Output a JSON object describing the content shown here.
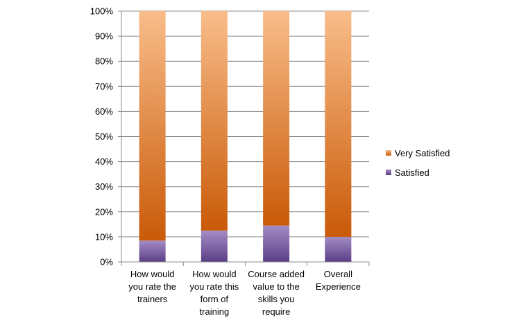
{
  "chart_data": {
    "type": "bar",
    "stacked": true,
    "percent_axis": true,
    "categories": [
      [
        "How would",
        "you rate the",
        "trainers"
      ],
      [
        "How would",
        "you rate this",
        "form of",
        "training"
      ],
      [
        "Course added",
        "value to the",
        "skills you",
        "require"
      ],
      [
        "Overall",
        "Experience"
      ]
    ],
    "series": [
      {
        "name": "Satisfied",
        "values": [
          8.5,
          12.5,
          14.5,
          10
        ],
        "color_top": "#a48cc4",
        "color_bottom": "#5b3f87"
      },
      {
        "name": "Very Satisfied",
        "values": [
          91.5,
          87.5,
          85.5,
          90
        ],
        "color_top": "#f9bd8a",
        "color_bottom": "#c95a08"
      }
    ],
    "yticks": [
      "0%",
      "10%",
      "20%",
      "30%",
      "40%",
      "50%",
      "60%",
      "70%",
      "80%",
      "90%",
      "100%"
    ],
    "ylim": [
      0,
      100
    ],
    "grid": true,
    "legend_position": "right",
    "legend_order": [
      "Very Satisfied",
      "Satisfied"
    ],
    "title": "",
    "xlabel": "",
    "ylabel": ""
  }
}
